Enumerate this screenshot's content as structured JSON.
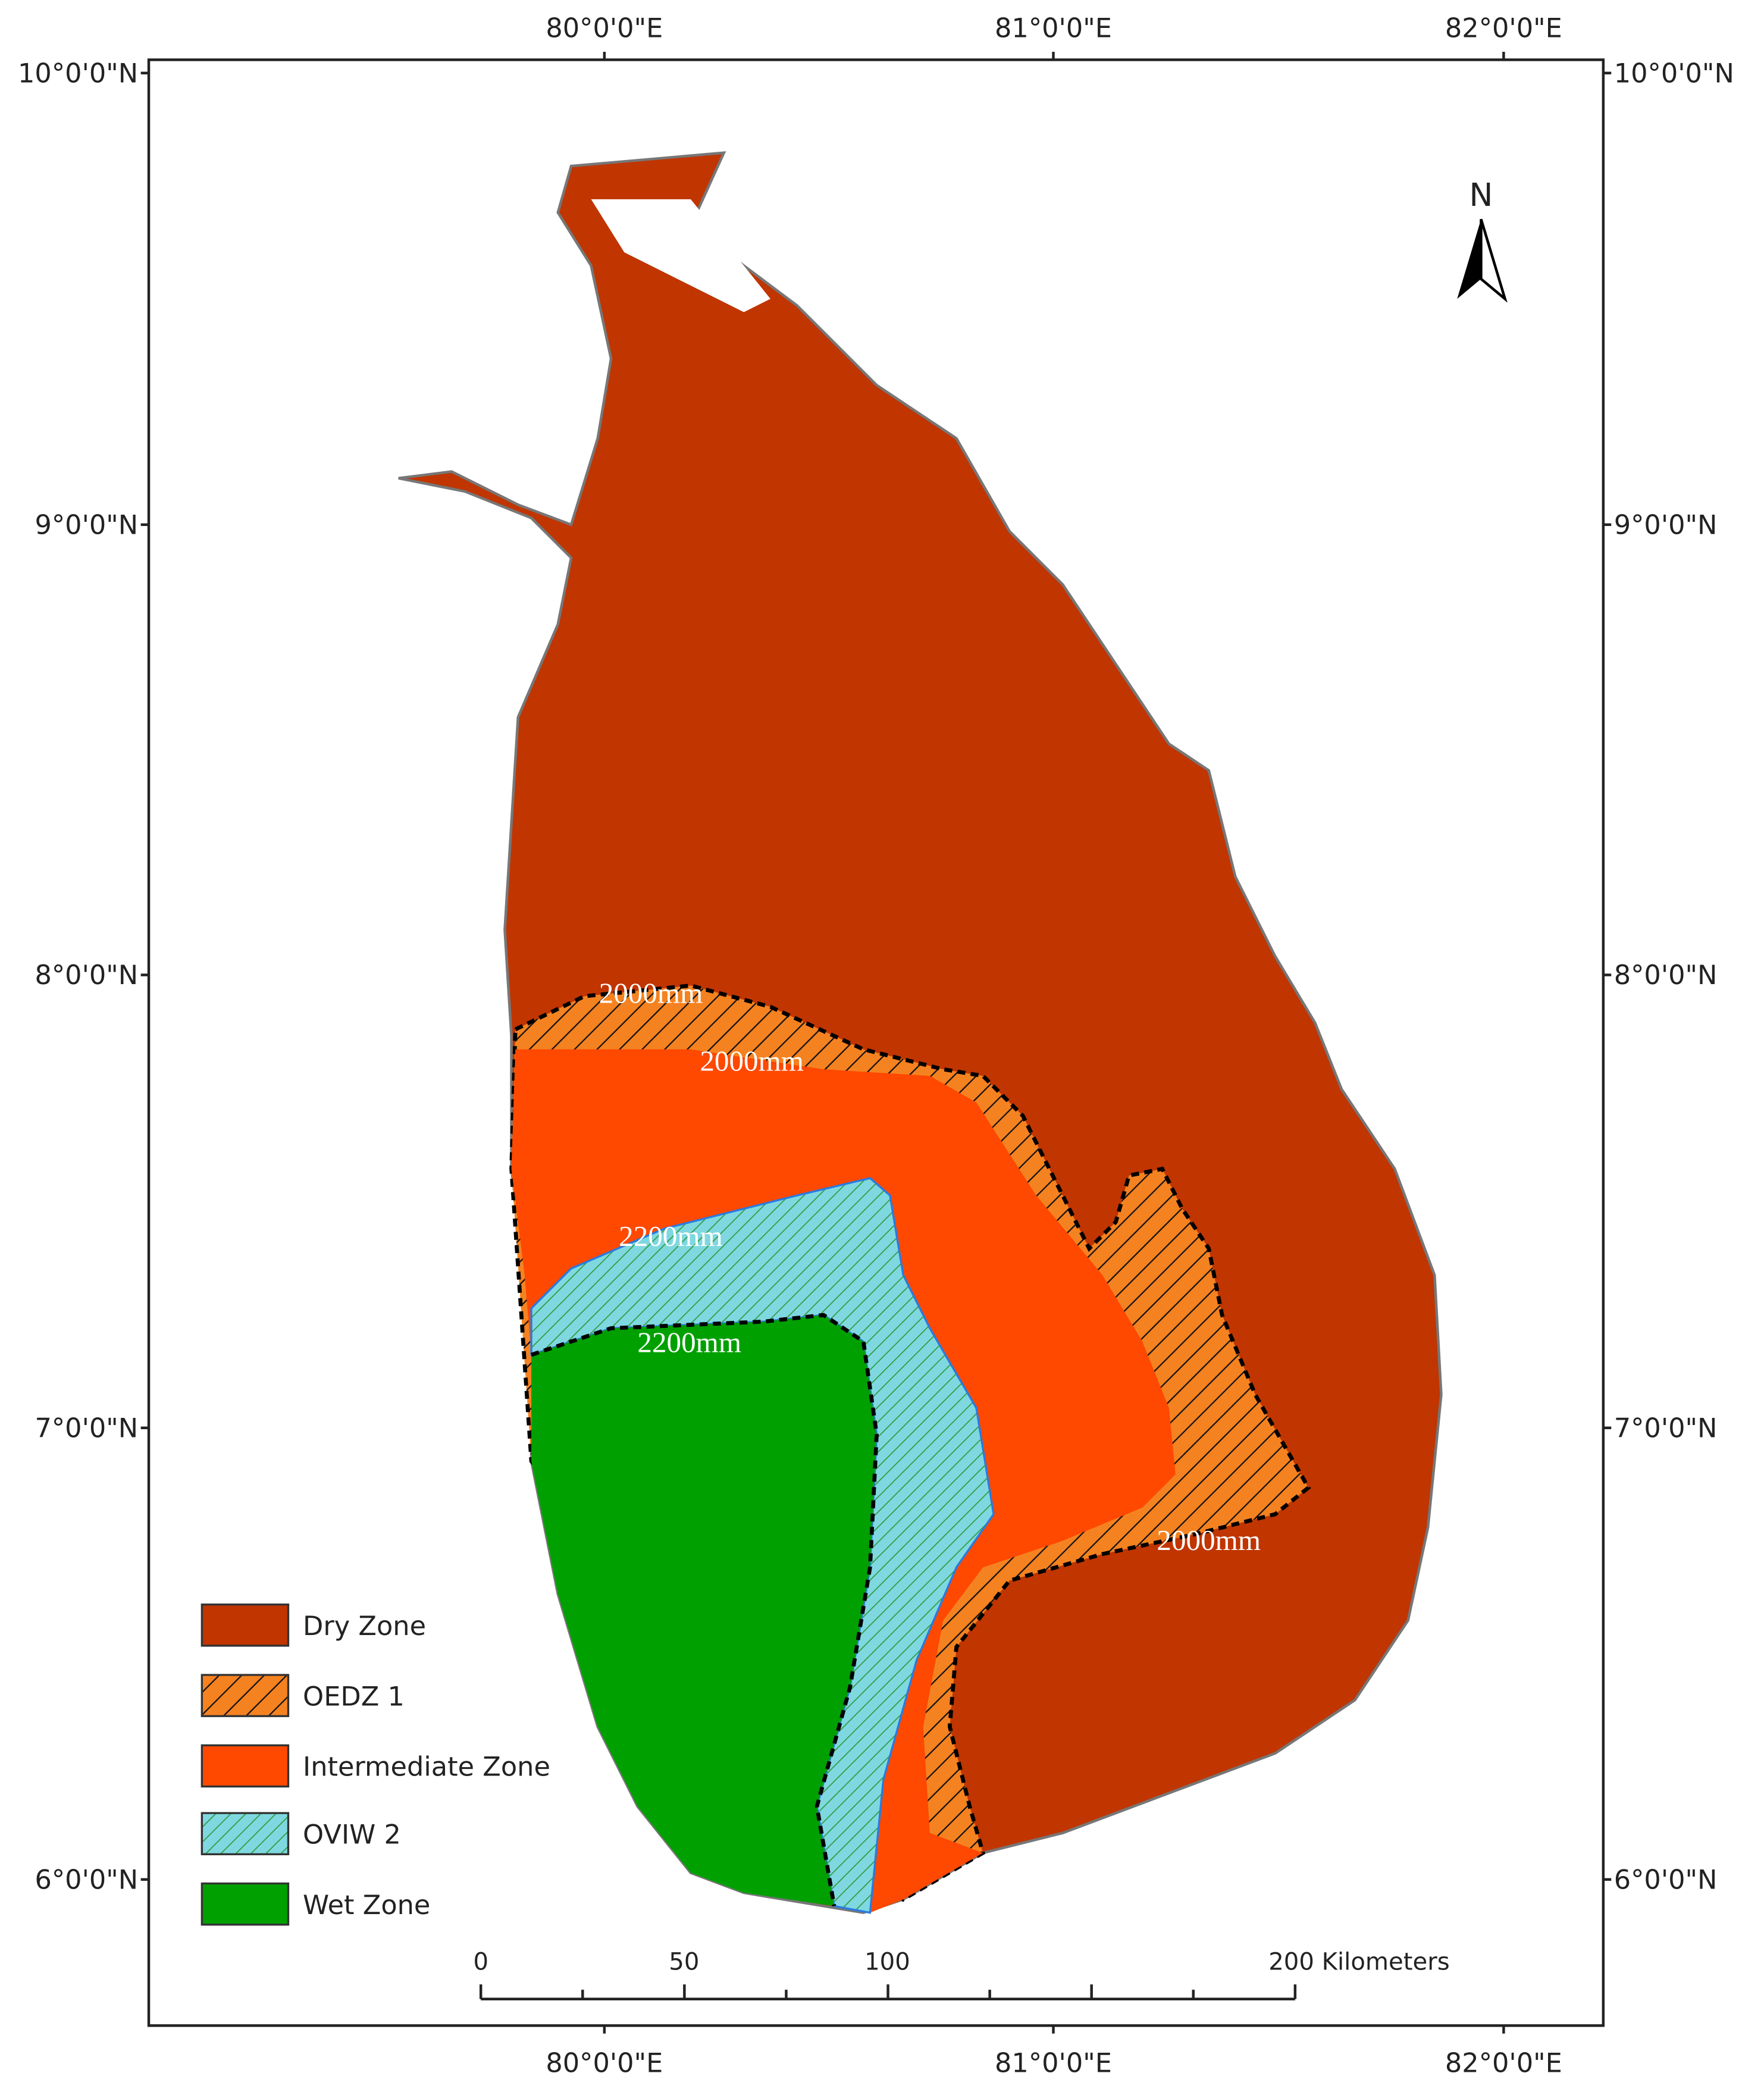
{
  "map": {
    "lat_labels_left": [
      "10°0'0\"N",
      "9°0'0\"N",
      "8°0'0\"N",
      "7°0'0\"N",
      "6°0'0\"N"
    ],
    "lat_labels_right": [
      "10°0'0\"N",
      "9°0'0\"N",
      "8°0'0\"N",
      "7°0'0\"N",
      "6°0'0\"N"
    ],
    "lon_labels_top": [
      "80°0'0\"E",
      "81°0'0\"E",
      "82°0'0\"E"
    ],
    "lon_labels_bottom": [
      "80°0'0\"E",
      "81°0'0\"E",
      "82°0'0\"E"
    ],
    "north": "N",
    "contour_labels": [
      "2000mm",
      "2000mm",
      "2200mm",
      "2200mm",
      "2000mm"
    ],
    "legend": [
      "Dry Zone",
      "OEDZ 1",
      "Intermediate Zone",
      "OVIW 2",
      "Wet Zone"
    ],
    "scale_bar": [
      "0",
      "50",
      "100",
      "200 Kilometers"
    ]
  }
}
